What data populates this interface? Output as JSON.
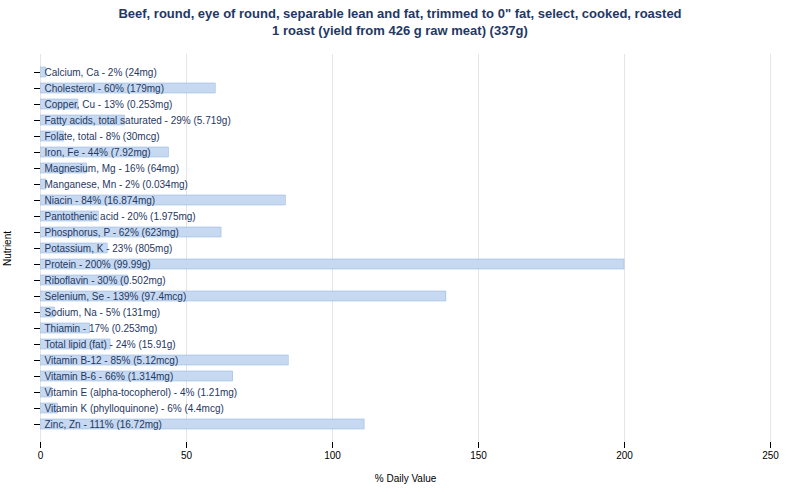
{
  "chart_data": {
    "type": "bar",
    "orientation": "horizontal",
    "title": "Beef, round, eye of round, separable lean and fat, trimmed to 0\" fat, select, cooked, roasted\n1 roast (yield from 426 g raw meat) (337g)",
    "xlabel": "% Daily Value",
    "ylabel": "Nutrient",
    "categories": [
      "Calcium, Ca - 2% (24mg)",
      "Cholesterol - 60% (179mg)",
      "Copper, Cu - 13% (0.253mg)",
      "Fatty acids, total saturated - 29% (5.719g)",
      "Folate, total - 8% (30mcg)",
      "Iron, Fe - 44% (7.92mg)",
      "Magnesium, Mg - 16% (64mg)",
      "Manganese, Mn - 2% (0.034mg)",
      "Niacin - 84% (16.874mg)",
      "Pantothenic acid - 20% (1.975mg)",
      "Phosphorus, P - 62% (623mg)",
      "Potassium, K - 23% (805mg)",
      "Protein - 200% (99.99g)",
      "Riboflavin - 30% (0.502mg)",
      "Selenium, Se - 139% (97.4mcg)",
      "Sodium, Na - 5% (131mg)",
      "Thiamin - 17% (0.253mg)",
      "Total lipid (fat) - 24% (15.91g)",
      "Vitamin B-12 - 85% (5.12mcg)",
      "Vitamin B-6 - 66% (1.314mg)",
      "Vitamin E (alpha-tocopherol) - 4% (1.21mg)",
      "Vitamin K (phylloquinone) - 6% (4.4mcg)",
      "Zinc, Zn - 111% (16.72mg)"
    ],
    "values": [
      2,
      60,
      13,
      29,
      8,
      44,
      16,
      2,
      84,
      20,
      62,
      23,
      200,
      30,
      139,
      5,
      17,
      24,
      85,
      66,
      4,
      6,
      111
    ],
    "color": "#c6d9f0",
    "xlim": [
      0,
      250
    ],
    "xticks": [
      0,
      50,
      100,
      150,
      200,
      250
    ],
    "grid": true,
    "tick_labels": "x"
  }
}
